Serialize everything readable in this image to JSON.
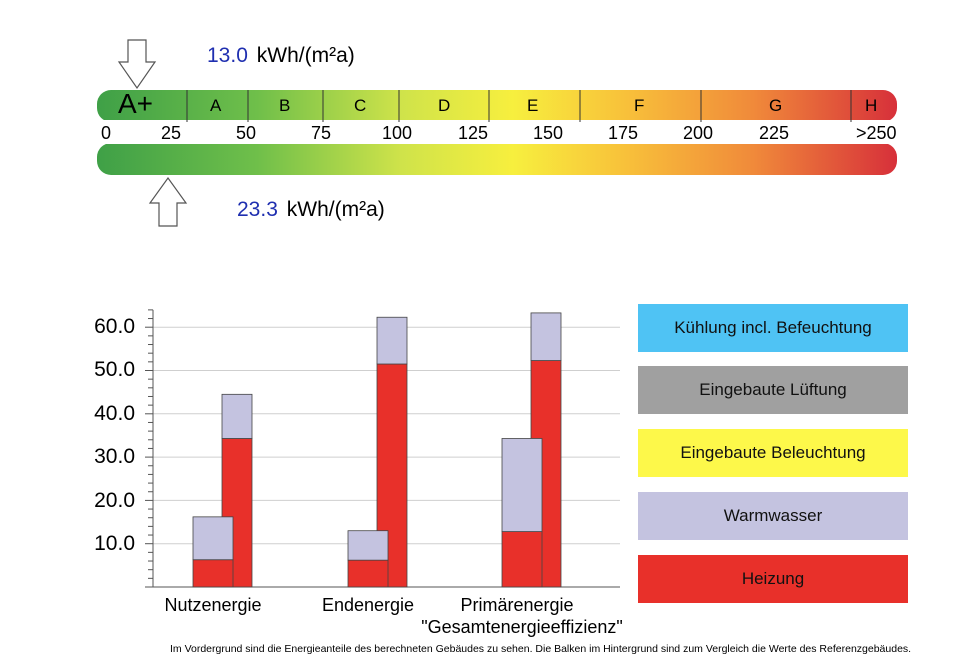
{
  "scale": {
    "marker_top": {
      "value": "13.0",
      "unit": "kWh/(m²a)"
    },
    "marker_bottom": {
      "value": "23.3",
      "unit": "kWh/(m²a)"
    },
    "classes": [
      "A+",
      "A",
      "B",
      "C",
      "D",
      "E",
      "F",
      "G",
      "H"
    ],
    "ticks": [
      "0",
      "25",
      "50",
      "75",
      "100",
      "125",
      "150",
      "175",
      "200",
      "225",
      ">250"
    ]
  },
  "chart_data": {
    "type": "bar",
    "categories": [
      "Nutzenergie",
      "Endenergie",
      "Primärenergie"
    ],
    "category_sublabel": "\"Gesamtenergieeffizienz\"",
    "y_ticks": [
      "10.0",
      "20.0",
      "30.0",
      "40.0",
      "50.0",
      "60.0"
    ],
    "ylim": [
      0,
      65
    ],
    "series": [
      {
        "name": "Heizung",
        "color": "#e8302a",
        "foreground": [
          6.3,
          6.2,
          12.8
        ],
        "background": [
          34.3,
          51.5,
          52.3
        ]
      },
      {
        "name": "Warmwasser",
        "color": "#c4c3e0",
        "foreground": [
          9.9,
          6.8,
          21.5
        ],
        "background": [
          10.2,
          10.8,
          11.0
        ]
      }
    ],
    "legend": [
      {
        "label": "Kühlung incl. Befeuchtung",
        "color": "#4fc3f4"
      },
      {
        "label": "Eingebaute Lüftung",
        "color": "#a0a0a0"
      },
      {
        "label": "Eingebaute Beleuchtung",
        "color": "#fdf84a"
      },
      {
        "label": "Warmwasser",
        "color": "#c4c3e0"
      },
      {
        "label": "Heizung",
        "color": "#e8302a"
      }
    ],
    "footnote": "Im Vordergrund sind die Energieanteile des berechneten Gebäudes zu sehen. Die Balken im Hintergrund sind zum Vergleich die Werte des Referenzgebäudes."
  }
}
